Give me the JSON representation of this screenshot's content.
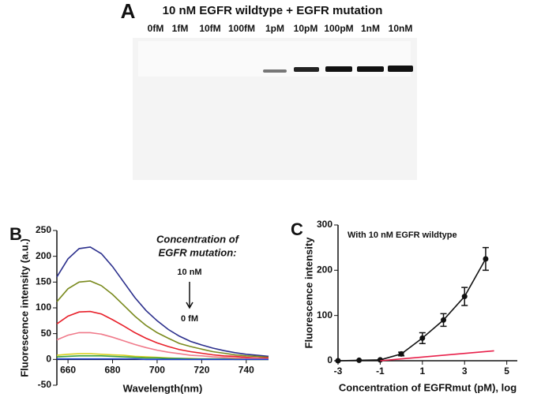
{
  "gel": {
    "label": "A",
    "title": "10 nM EGFR wildtype + EGFR mutation",
    "lanes": [
      "0fM",
      "1fM",
      "10fM",
      "100fM",
      "1pM",
      "10pM",
      "100pM",
      "1nM",
      "10nM"
    ]
  },
  "chart_data": [
    {
      "type": "line",
      "label": "B",
      "x_label": "Wavelength(nm)",
      "y_label": "Fluorescence intensity (a.u.)",
      "annotations": [
        "Concentration of",
        "EGFR mutation:",
        "10 nM",
        "0 fM"
      ],
      "x": [
        655,
        660,
        665,
        670,
        675,
        680,
        685,
        690,
        695,
        700,
        705,
        710,
        715,
        720,
        725,
        730,
        735,
        740,
        745,
        750
      ],
      "xlim": [
        655,
        750
      ],
      "xticks": [
        660,
        680,
        700,
        720,
        740
      ],
      "ylim": [
        -50,
        250
      ],
      "yticks": [
        -50,
        0,
        50,
        100,
        150,
        200,
        250
      ],
      "series": [
        {
          "color": "#2b2f8c",
          "values": [
            160,
            195,
            215,
            218,
            205,
            180,
            150,
            120,
            95,
            75,
            58,
            45,
            35,
            28,
            22,
            17,
            13,
            10,
            8,
            6
          ]
        },
        {
          "color": "#7a8a1e",
          "values": [
            112,
            137,
            150,
            152,
            143,
            126,
            105,
            84,
            66,
            52,
            41,
            31,
            25,
            20,
            15,
            12,
            9,
            7,
            6,
            4
          ]
        },
        {
          "color": "#e8202a",
          "values": [
            69,
            84,
            92,
            93,
            88,
            77,
            65,
            52,
            41,
            32,
            25,
            19,
            15,
            12,
            9,
            7,
            6,
            4,
            3,
            3
          ]
        },
        {
          "color": "#f07a8a",
          "values": [
            38,
            47,
            52,
            52,
            49,
            43,
            36,
            29,
            23,
            18,
            14,
            11,
            8,
            7,
            5,
            4,
            3,
            2,
            2,
            1
          ]
        },
        {
          "color": "#d8d020",
          "values": [
            8,
            10,
            11,
            11,
            10,
            9,
            8,
            6,
            5,
            4,
            3,
            2,
            2,
            1,
            1,
            1,
            1,
            0,
            0,
            0
          ]
        },
        {
          "color": "#3aa040",
          "values": [
            5,
            6,
            7,
            7,
            7,
            6,
            5,
            4,
            3,
            3,
            2,
            2,
            1,
            1,
            1,
            1,
            0,
            0,
            0,
            0
          ]
        },
        {
          "color": "#2040d0",
          "values": [
            1,
            1,
            1,
            1,
            1,
            1,
            1,
            1,
            0,
            0,
            0,
            0,
            0,
            0,
            0,
            0,
            0,
            0,
            0,
            0
          ]
        }
      ]
    },
    {
      "type": "line",
      "label": "C",
      "x_label": "Concentration of EGFRmut (pM), log",
      "y_label": "Fluorescence intensity",
      "annotations": [
        "With 10 nM EGFR wildtype"
      ],
      "xlim": [
        -3,
        5.5
      ],
      "xticks": [
        -3,
        -1,
        1,
        3,
        5
      ],
      "ylim": [
        0,
        300
      ],
      "yticks": [
        0,
        100,
        200,
        300
      ],
      "series": [
        {
          "color": "#111111",
          "x": [
            -3,
            -2,
            -1,
            0,
            1,
            2,
            3,
            4
          ],
          "values": [
            0,
            1,
            2,
            15,
            50,
            90,
            142,
            225
          ],
          "errors": [
            0,
            0,
            0,
            4,
            12,
            14,
            20,
            25
          ]
        },
        {
          "color": "#e8204a",
          "x": [
            -1,
            4.4
          ],
          "values": [
            0,
            22
          ]
        }
      ]
    }
  ]
}
